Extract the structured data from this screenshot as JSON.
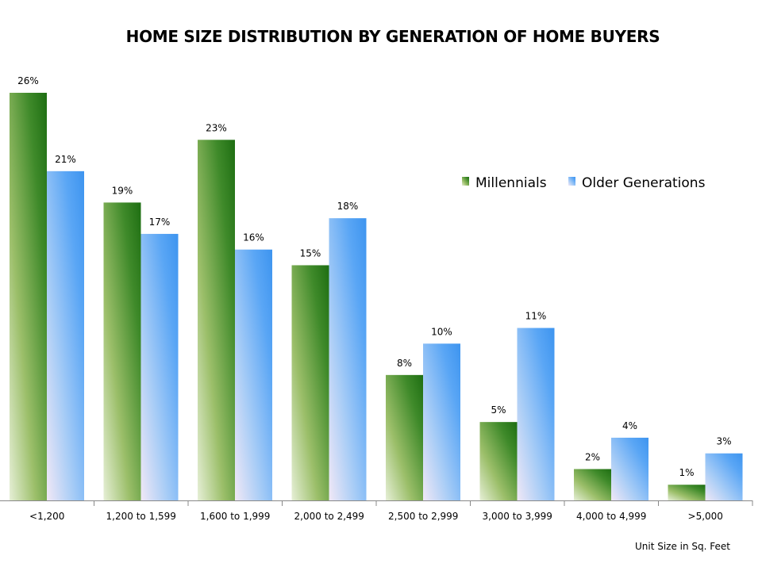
{
  "chart_data": {
    "type": "bar",
    "title": "HOME SIZE DISTRIBUTION BY GENERATION OF HOME BUYERS",
    "xlabel": "Unit Size in Sq. Feet",
    "ylabel": "",
    "ylim": [
      0,
      26
    ],
    "grid": false,
    "legend_position": "right",
    "categories": [
      "<1,200",
      "1,200 to 1,599",
      "1,600 to 1,999",
      "2,000 to 2,499",
      "2,500 to 2,999",
      "3,000 to 3,999",
      "4,000 to 4,999",
      ">5,000"
    ],
    "series": [
      {
        "name": "Millennials",
        "values": [
          26,
          19,
          23,
          15,
          8,
          5,
          2,
          1
        ],
        "color": "#3f8a2a"
      },
      {
        "name": "Older Generations",
        "values": [
          21,
          17,
          16,
          18,
          10,
          11,
          4,
          3
        ],
        "color": "#5aa6f5"
      }
    ],
    "data_labels": [
      [
        "26%",
        "19%",
        "23%",
        "15%",
        "8%",
        "5%",
        "2%",
        "1%"
      ],
      [
        "21%",
        "17%",
        "16%",
        "18%",
        "10%",
        "11%",
        "4%",
        "3%"
      ]
    ]
  }
}
